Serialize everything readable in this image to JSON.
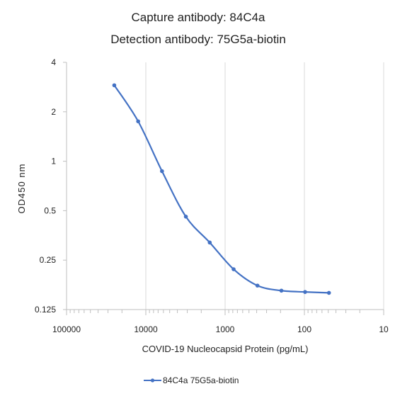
{
  "chart_data": {
    "type": "line",
    "title": [
      "Capture antibody: 84C4a",
      "Detection antibody: 75G5a-biotin"
    ],
    "xlabel": "COVID-19 Nucleocapsid Protein (pg/mL)",
    "ylabel": "OD450 nm",
    "x_scale": "log",
    "x_reversed": true,
    "xlim": [
      100000,
      10
    ],
    "x_ticks": [
      100000,
      10000,
      1000,
      100,
      10
    ],
    "x_tick_labels": [
      "100000",
      "10000",
      "1000",
      "100",
      "10"
    ],
    "y_scale": "log2",
    "ylim": [
      0.125,
      4
    ],
    "y_ticks": [
      0.125,
      0.25,
      0.5,
      1,
      2,
      4
    ],
    "y_tick_labels": [
      "0.125",
      "0.25",
      "0.5",
      "1",
      "2",
      "4"
    ],
    "grid": "vertical",
    "legend": "bottom",
    "colors": {
      "series": "#4472C4",
      "grid": "#d9d9d9",
      "axis": "#bfbfbf"
    },
    "series": [
      {
        "name": "84C4a 75G5a-biotin",
        "x": [
          25000,
          12500,
          6250,
          3125,
          1563,
          781,
          391,
          195,
          98,
          49
        ],
        "y": [
          2.9,
          1.75,
          0.87,
          0.46,
          0.32,
          0.22,
          0.175,
          0.163,
          0.16,
          0.158
        ]
      }
    ]
  }
}
